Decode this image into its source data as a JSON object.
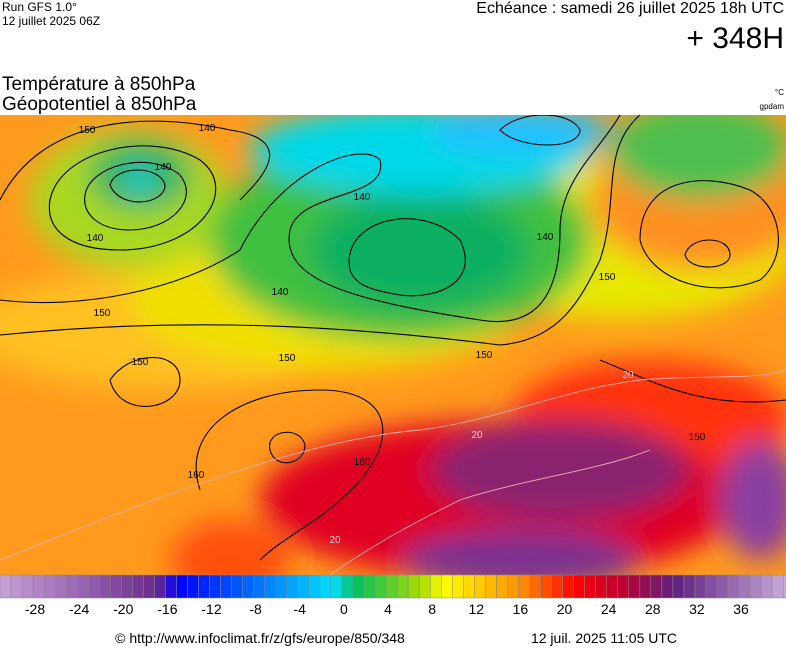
{
  "header": {
    "run": "Run GFS 1.0°",
    "run_date": "12 juillet 2025 06Z",
    "valid": "Echéance : samedi 26 juillet 2025 18h UTC",
    "lead": "+ 348H",
    "title_line1": "Température à 850hPa",
    "title_line2": "Géopotentiel à 850hPa",
    "unit_temp": "°C",
    "unit_geo": "gpdam"
  },
  "map": {
    "contour_labels": [
      "150",
      "140",
      "140",
      "140",
      "140",
      "140",
      "150",
      "150",
      "150",
      "150",
      "150",
      "160",
      "160",
      "150",
      "20",
      "20",
      "20",
      "140"
    ]
  },
  "colorbar": {
    "ticks": [
      -28,
      -24,
      -20,
      -16,
      -12,
      -8,
      -4,
      0,
      4,
      8,
      12,
      16,
      20,
      24,
      28,
      32,
      36
    ]
  },
  "footer": {
    "source": "© http://www.infoclimat.fr/z/gfs/europe/850/348",
    "generated": "12 juil. 2025 11:05 UTC"
  }
}
